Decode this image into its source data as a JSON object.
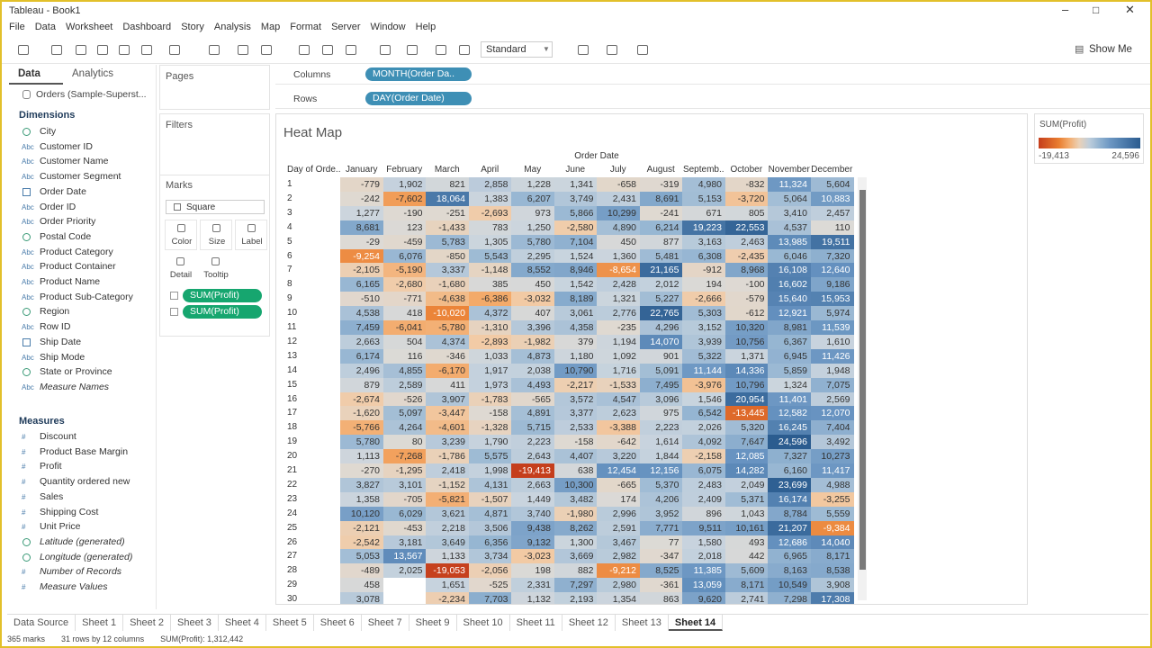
{
  "window": {
    "title": "Tableau - Book1"
  },
  "menu": [
    "File",
    "Data",
    "Worksheet",
    "Dashboard",
    "Story",
    "Analysis",
    "Map",
    "Format",
    "Server",
    "Window",
    "Help"
  ],
  "toolbar": {
    "format_dropdown": "Standard",
    "show_me": "Show Me"
  },
  "data_pane": {
    "tabs": [
      "Data",
      "Analytics"
    ],
    "source": "Orders (Sample-Superst...",
    "dimensions_header": "Dimensions",
    "dimensions": [
      {
        "kind": "geo",
        "name": "City"
      },
      {
        "icon": "Abc",
        "name": "Customer ID"
      },
      {
        "icon": "Abc",
        "name": "Customer Name"
      },
      {
        "icon": "Abc",
        "name": "Customer Segment"
      },
      {
        "kind": "date",
        "name": "Order Date"
      },
      {
        "icon": "Abc",
        "name": "Order ID"
      },
      {
        "icon": "Abc",
        "name": "Order Priority"
      },
      {
        "kind": "geo",
        "name": "Postal Code"
      },
      {
        "icon": "Abc",
        "name": "Product Category"
      },
      {
        "icon": "Abc",
        "name": "Product Container"
      },
      {
        "icon": "Abc",
        "name": "Product Name"
      },
      {
        "icon": "Abc",
        "name": "Product Sub-Category"
      },
      {
        "kind": "geo",
        "name": "Region"
      },
      {
        "icon": "Abc",
        "name": "Row ID"
      },
      {
        "kind": "date",
        "name": "Ship Date"
      },
      {
        "icon": "Abc",
        "name": "Ship Mode"
      },
      {
        "kind": "geo",
        "name": "State or Province"
      },
      {
        "icon": "Abc",
        "name": "Measure Names",
        "italic": true
      }
    ],
    "measures_header": "Measures",
    "measures": [
      {
        "icon": "#",
        "name": "Discount"
      },
      {
        "icon": "#",
        "name": "Product Base Margin"
      },
      {
        "icon": "#",
        "name": "Profit"
      },
      {
        "icon": "#",
        "name": "Quantity ordered new"
      },
      {
        "icon": "#",
        "name": "Sales"
      },
      {
        "icon": "#",
        "name": "Shipping Cost"
      },
      {
        "icon": "#",
        "name": "Unit Price"
      },
      {
        "kind": "geo",
        "name": "Latitude (generated)",
        "italic": true
      },
      {
        "kind": "geo",
        "name": "Longitude (generated)",
        "italic": true
      },
      {
        "icon": "#",
        "name": "Number of Records",
        "italic": true
      },
      {
        "icon": "#",
        "name": "Measure Values",
        "italic": true
      }
    ]
  },
  "cards": {
    "pages": "Pages",
    "filters": "Filters",
    "marks": "Marks",
    "mark_type": "Square",
    "mark_buttons": [
      "Color",
      "Size",
      "Label",
      "Detail",
      "Tooltip"
    ],
    "mark_pills": [
      "SUM(Profit)",
      "SUM(Profit)"
    ]
  },
  "shelves": {
    "columns_label": "Columns",
    "columns_pill": "MONTH(Order Da..",
    "rows_label": "Rows",
    "rows_pill": "DAY(Order Date)"
  },
  "viz": {
    "title": "Heat Map",
    "column_header": "Order Date",
    "row_header": "Day of Orde..",
    "months": [
      "January",
      "February",
      "March",
      "April",
      "May",
      "June",
      "July",
      "August",
      "Septemb..",
      "October",
      "November",
      "December"
    ],
    "days": [
      "1",
      "2",
      "3",
      "4",
      "5",
      "6",
      "7",
      "8",
      "9",
      "10",
      "11",
      "12",
      "13",
      "14",
      "15",
      "16",
      "17",
      "18",
      "19",
      "20",
      "21",
      "22",
      "23",
      "24",
      "25",
      "26",
      "27",
      "28",
      "29",
      "30"
    ],
    "rows": [
      [
        "-779",
        "1,902",
        "821",
        "2,858",
        "1,228",
        "1,341",
        "-658",
        "-319",
        "4,980",
        "-832",
        "11,324",
        "5,604"
      ],
      [
        "-242",
        "-7,602",
        "18,064",
        "1,383",
        "6,207",
        "3,749",
        "2,431",
        "8,691",
        "5,153",
        "-3,720",
        "5,064",
        "10,883"
      ],
      [
        "1,277",
        "-190",
        "-251",
        "-2,693",
        "973",
        "5,866",
        "10,299",
        "-241",
        "671",
        "805",
        "3,410",
        "2,457"
      ],
      [
        "8,681",
        "123",
        "-1,433",
        "783",
        "1,250",
        "-2,580",
        "4,890",
        "6,214",
        "19,223",
        "22,553",
        "4,537",
        "110"
      ],
      [
        "-29",
        "-459",
        "5,783",
        "1,305",
        "5,780",
        "7,104",
        "450",
        "877",
        "3,163",
        "2,463",
        "13,985",
        "19,511"
      ],
      [
        "-9,254",
        "6,076",
        "-850",
        "5,543",
        "2,295",
        "1,524",
        "1,360",
        "5,481",
        "6,308",
        "-2,435",
        "6,046",
        "7,320"
      ],
      [
        "-2,105",
        "-5,190",
        "3,337",
        "-1,148",
        "8,552",
        "8,946",
        "-8,654",
        "21,165",
        "-912",
        "8,968",
        "16,108",
        "12,640"
      ],
      [
        "6,165",
        "-2,680",
        "-1,680",
        "385",
        "450",
        "1,542",
        "2,428",
        "2,012",
        "194",
        "-100",
        "16,602",
        "9,186"
      ],
      [
        "-510",
        "-771",
        "-4,638",
        "-6,386",
        "-3,032",
        "8,189",
        "1,321",
        "5,227",
        "-2,666",
        "-579",
        "15,640",
        "15,953"
      ],
      [
        "4,538",
        "418",
        "-10,020",
        "4,372",
        "407",
        "3,061",
        "2,776",
        "22,765",
        "5,303",
        "-612",
        "12,921",
        "5,974"
      ],
      [
        "7,459",
        "-6,041",
        "-5,780",
        "-1,310",
        "3,396",
        "4,358",
        "-235",
        "4,296",
        "3,152",
        "10,320",
        "8,981",
        "11,539"
      ],
      [
        "2,663",
        "504",
        "4,374",
        "-2,893",
        "-1,982",
        "379",
        "1,194",
        "14,070",
        "3,939",
        "10,756",
        "6,367",
        "1,610"
      ],
      [
        "6,174",
        "116",
        "-346",
        "1,033",
        "4,873",
        "1,180",
        "1,092",
        "901",
        "5,322",
        "1,371",
        "6,945",
        "11,426"
      ],
      [
        "2,496",
        "4,855",
        "-6,170",
        "1,917",
        "2,038",
        "10,790",
        "1,716",
        "5,091",
        "11,144",
        "14,336",
        "5,859",
        "1,948"
      ],
      [
        "879",
        "2,589",
        "411",
        "1,973",
        "4,493",
        "-2,217",
        "-1,533",
        "7,495",
        "-3,976",
        "10,796",
        "1,324",
        "7,075"
      ],
      [
        "-2,674",
        "-526",
        "3,907",
        "-1,783",
        "-565",
        "3,572",
        "4,547",
        "3,096",
        "1,546",
        "20,954",
        "11,401",
        "2,569"
      ],
      [
        "-1,620",
        "5,097",
        "-3,447",
        "-158",
        "4,891",
        "3,377",
        "2,623",
        "975",
        "6,542",
        "-13,445",
        "12,582",
        "12,070"
      ],
      [
        "-5,766",
        "4,264",
        "-4,601",
        "-1,328",
        "5,715",
        "2,533",
        "-3,388",
        "2,223",
        "2,026",
        "5,320",
        "16,245",
        "7,404"
      ],
      [
        "5,780",
        "80",
        "3,239",
        "1,790",
        "2,223",
        "-158",
        "-642",
        "1,614",
        "4,092",
        "7,647",
        "24,596",
        "3,492"
      ],
      [
        "1,113",
        "-7,268",
        "-1,786",
        "5,575",
        "2,643",
        "4,407",
        "3,220",
        "1,844",
        "-2,158",
        "12,085",
        "7,327",
        "10,273"
      ],
      [
        "-270",
        "-1,295",
        "2,418",
        "1,998",
        "-19,413",
        "638",
        "12,454",
        "12,156",
        "6,075",
        "14,282",
        "6,160",
        "11,417"
      ],
      [
        "3,827",
        "3,101",
        "-1,152",
        "4,131",
        "2,663",
        "10,300",
        "-665",
        "5,370",
        "2,483",
        "2,049",
        "23,699",
        "4,988"
      ],
      [
        "1,358",
        "-705",
        "-5,821",
        "-1,507",
        "1,449",
        "3,482",
        "174",
        "4,206",
        "2,409",
        "5,371",
        "16,174",
        "-3,255"
      ],
      [
        "10,120",
        "6,029",
        "3,621",
        "4,871",
        "3,740",
        "-1,980",
        "2,996",
        "3,952",
        "896",
        "1,043",
        "8,784",
        "5,559"
      ],
      [
        "-2,121",
        "-453",
        "2,218",
        "3,506",
        "9,438",
        "8,262",
        "2,591",
        "7,771",
        "9,511",
        "10,161",
        "21,207",
        "-9,384"
      ],
      [
        "-2,542",
        "3,181",
        "3,649",
        "6,356",
        "9,132",
        "1,300",
        "3,467",
        "77",
        "1,580",
        "493",
        "12,686",
        "14,040"
      ],
      [
        "5,053",
        "13,567",
        "1,133",
        "3,734",
        "-3,023",
        "3,669",
        "2,982",
        "-347",
        "2,018",
        "442",
        "6,965",
        "8,171"
      ],
      [
        "-489",
        "2,025",
        "-19,053",
        "-2,056",
        "198",
        "882",
        "-9,212",
        "8,525",
        "11,385",
        "5,609",
        "8,163",
        "8,538"
      ],
      [
        "458",
        null,
        "1,651",
        "-525",
        "2,331",
        "7,297",
        "2,980",
        "-361",
        "13,059",
        "8,171",
        "10,549",
        "3,908"
      ],
      [
        "3,078",
        null,
        "-2,234",
        "7,703",
        "1,132",
        "2,193",
        "1,354",
        "863",
        "9,620",
        "2,741",
        "7,298",
        "17,308"
      ]
    ]
  },
  "legend": {
    "title": "SUM(Profit)",
    "min": "-19,413",
    "max": "24,596"
  },
  "sheet_tabs": [
    "Data Source",
    "Sheet 1",
    "Sheet 2",
    "Sheet 3",
    "Sheet 4",
    "Sheet 5",
    "Sheet 6",
    "Sheet 7",
    "Sheet 9",
    "Sheet 10",
    "Sheet 11",
    "Sheet 12",
    "Sheet 13",
    "Sheet 14"
  ],
  "status": [
    "365 marks",
    "31 rows by 12 columns",
    "SUM(Profit): 1,312,442"
  ]
}
